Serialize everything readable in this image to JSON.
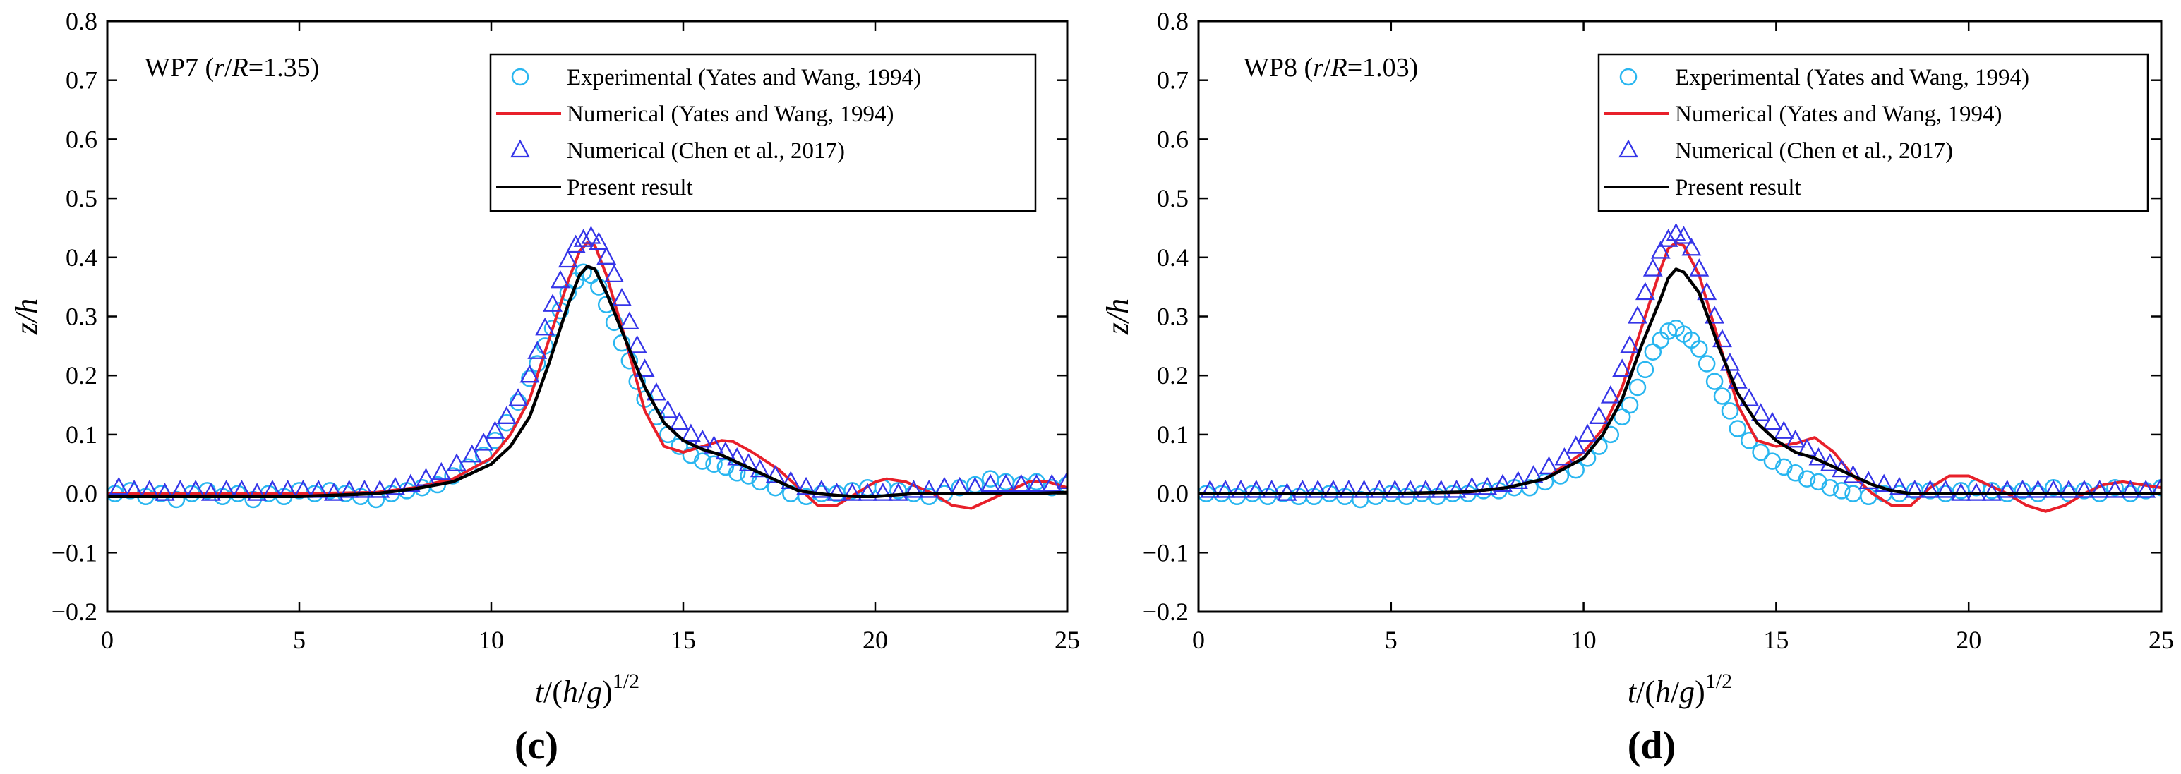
{
  "chart_data": [
    {
      "type": "line",
      "panel": "c",
      "annotation": {
        "prefix": "WP7 (",
        "var1": "r",
        "sep": "/",
        "var2": "R",
        "suffix": "=1.35)"
      },
      "xlabel": "t/(h/g)^1/2",
      "ylabel": "z/h",
      "xlim": [
        0,
        25
      ],
      "ylim": [
        -0.2,
        0.8
      ],
      "xticks": [
        0,
        5,
        10,
        15,
        20,
        25
      ],
      "yticks": [
        -0.2,
        -0.1,
        0.0,
        0.1,
        0.2,
        0.3,
        0.4,
        0.5,
        0.6,
        0.7,
        0.8
      ],
      "legend": [
        "Experimental (Yates and Wang, 1994)",
        "Numerical (Yates and Wang, 1994)",
        "Numerical (Chen et al., 2017)",
        "Present result"
      ],
      "series": [
        {
          "name": "Experimental (Yates and Wang, 1994)",
          "style": "circle",
          "color": "#29b6f0",
          "x": [
            0.2,
            0.6,
            1.0,
            1.4,
            1.8,
            2.2,
            2.6,
            3.0,
            3.4,
            3.8,
            4.2,
            4.6,
            5.0,
            5.4,
            5.8,
            6.2,
            6.6,
            7.0,
            7.4,
            7.8,
            8.2,
            8.6,
            9.0,
            9.4,
            9.8,
            10.1,
            10.4,
            10.7,
            11.0,
            11.2,
            11.4,
            11.6,
            11.8,
            12.0,
            12.2,
            12.4,
            12.6,
            12.8,
            13.0,
            13.2,
            13.4,
            13.6,
            13.8,
            14.0,
            14.3,
            14.6,
            14.9,
            15.2,
            15.5,
            15.8,
            16.1,
            16.4,
            16.7,
            17.0,
            17.4,
            17.8,
            18.2,
            18.6,
            19.0,
            19.4,
            19.8,
            20.2,
            20.6,
            21.0,
            21.4,
            21.8,
            22.2,
            22.6,
            23.0,
            23.4,
            23.8,
            24.2,
            24.6,
            25.0
          ],
          "y": [
            0.0,
            0.005,
            -0.005,
            0.0,
            -0.01,
            0.0,
            0.005,
            -0.005,
            0.0,
            -0.01,
            0.0,
            -0.005,
            0.005,
            0.0,
            0.005,
            0.0,
            -0.005,
            -0.01,
            0.0,
            0.005,
            0.01,
            0.015,
            0.03,
            0.045,
            0.065,
            0.09,
            0.12,
            0.155,
            0.195,
            0.22,
            0.25,
            0.28,
            0.31,
            0.34,
            0.36,
            0.375,
            0.37,
            0.35,
            0.32,
            0.29,
            0.255,
            0.225,
            0.19,
            0.16,
            0.13,
            0.1,
            0.08,
            0.065,
            0.055,
            0.05,
            0.045,
            0.035,
            0.03,
            0.02,
            0.01,
            0.0,
            -0.005,
            0.0,
            0.0,
            0.005,
            0.01,
            0.01,
            0.005,
            0.0,
            -0.005,
            0.0,
            0.01,
            0.015,
            0.025,
            0.02,
            0.015,
            0.02,
            0.01,
            0.015
          ]
        },
        {
          "name": "Numerical (Yates and Wang, 1994)",
          "style": "line",
          "color": "#e8202a",
          "x": [
            0,
            5,
            7,
            8,
            9,
            10,
            10.5,
            11,
            11.5,
            12,
            12.3,
            12.5,
            12.7,
            13,
            13.5,
            14,
            14.5,
            15,
            15.5,
            16,
            16.3,
            16.8,
            17.5,
            18,
            18.5,
            19,
            19.5,
            20,
            20.3,
            20.8,
            21.5,
            22,
            22.5,
            23,
            23.5,
            24,
            24.5,
            25
          ],
          "y": [
            0,
            0,
            0.002,
            0.01,
            0.025,
            0.06,
            0.1,
            0.16,
            0.26,
            0.36,
            0.41,
            0.425,
            0.42,
            0.37,
            0.26,
            0.14,
            0.08,
            0.07,
            0.08,
            0.09,
            0.088,
            0.07,
            0.04,
            0.01,
            -0.02,
            -0.02,
            0.0,
            0.02,
            0.025,
            0.02,
            0.0,
            -0.02,
            -0.025,
            -0.01,
            0.005,
            0.02,
            0.02,
            0.01
          ]
        },
        {
          "name": "Numerical (Chen et al., 2017)",
          "style": "triangle",
          "color": "#3535e8",
          "x": [
            0.3,
            0.7,
            1.1,
            1.5,
            1.9,
            2.3,
            2.7,
            3.1,
            3.5,
            3.9,
            4.3,
            4.7,
            5.1,
            5.5,
            5.9,
            6.3,
            6.7,
            7.1,
            7.5,
            7.9,
            8.3,
            8.7,
            9.1,
            9.5,
            9.8,
            10.1,
            10.4,
            10.7,
            11.0,
            11.2,
            11.4,
            11.6,
            11.8,
            12.0,
            12.2,
            12.4,
            12.6,
            12.8,
            13.0,
            13.2,
            13.4,
            13.6,
            13.8,
            14.0,
            14.3,
            14.6,
            14.9,
            15.2,
            15.5,
            15.8,
            16.1,
            16.4,
            16.7,
            17.0,
            17.4,
            17.8,
            18.2,
            18.6,
            19.0,
            19.4,
            19.8,
            20.2,
            20.6,
            21.0,
            21.4,
            21.8,
            22.2,
            22.6,
            23.0,
            23.4,
            23.8,
            24.2,
            24.6,
            25.0
          ],
          "y": [
            0.01,
            0.005,
            0.005,
            0.0,
            0.005,
            0.005,
            0.0,
            0.005,
            0.005,
            0.0,
            0.005,
            0.005,
            0.005,
            0.005,
            0.0,
            0.005,
            0.005,
            0.005,
            0.01,
            0.015,
            0.025,
            0.035,
            0.05,
            0.065,
            0.085,
            0.105,
            0.13,
            0.16,
            0.2,
            0.24,
            0.28,
            0.32,
            0.36,
            0.395,
            0.42,
            0.43,
            0.435,
            0.425,
            0.4,
            0.37,
            0.33,
            0.29,
            0.25,
            0.21,
            0.17,
            0.14,
            0.12,
            0.1,
            0.09,
            0.08,
            0.07,
            0.06,
            0.05,
            0.04,
            0.03,
            0.02,
            0.01,
            0.005,
            0.0,
            0.0,
            0.0,
            0.0,
            0.0,
            0.005,
            0.005,
            0.01,
            0.01,
            0.01,
            0.015,
            0.015,
            0.015,
            0.015,
            0.015,
            0.02
          ]
        },
        {
          "name": "Present result",
          "style": "line",
          "color": "#000000",
          "x": [
            0,
            5,
            7,
            8,
            9,
            10,
            10.5,
            11,
            11.5,
            12,
            12.3,
            12.5,
            12.7,
            13,
            13.5,
            14,
            14.5,
            15,
            15.5,
            16,
            16.5,
            17,
            17.5,
            18,
            18.5,
            19,
            19.5,
            20,
            21,
            22,
            23,
            24,
            25
          ],
          "y": [
            -0.005,
            -0.005,
            0.0,
            0.008,
            0.02,
            0.05,
            0.08,
            0.13,
            0.22,
            0.32,
            0.37,
            0.385,
            0.38,
            0.34,
            0.26,
            0.18,
            0.12,
            0.09,
            0.075,
            0.065,
            0.05,
            0.035,
            0.02,
            0.005,
            0.0,
            -0.003,
            -0.005,
            -0.005,
            0.0,
            0.0,
            0.0,
            0.0,
            0.002
          ]
        }
      ]
    },
    {
      "type": "line",
      "panel": "d",
      "annotation": {
        "prefix": "WP8 (",
        "var1": "r",
        "sep": "/",
        "var2": "R",
        "suffix": "=1.03)"
      },
      "xlabel": "t/(h/g)^1/2",
      "ylabel": "z/h",
      "xlim": [
        0,
        25
      ],
      "ylim": [
        -0.2,
        0.8
      ],
      "xticks": [
        0,
        5,
        10,
        15,
        20,
        25
      ],
      "yticks": [
        -0.2,
        -0.1,
        0.0,
        0.1,
        0.2,
        0.3,
        0.4,
        0.5,
        0.6,
        0.7,
        0.8
      ],
      "legend": [
        "Experimental (Yates and Wang, 1994)",
        "Numerical (Yates and Wang, 1994)",
        "Numerical (Chen et al., 2017)",
        "Present result"
      ],
      "series": [
        {
          "name": "Experimental (Yates and Wang, 1994)",
          "style": "circle",
          "color": "#29b6f0",
          "x": [
            0.2,
            0.6,
            1.0,
            1.4,
            1.8,
            2.2,
            2.6,
            3.0,
            3.4,
            3.8,
            4.2,
            4.6,
            5.0,
            5.4,
            5.8,
            6.2,
            6.6,
            7.0,
            7.4,
            7.8,
            8.2,
            8.6,
            9.0,
            9.4,
            9.8,
            10.1,
            10.4,
            10.7,
            11.0,
            11.2,
            11.4,
            11.6,
            11.8,
            12.0,
            12.2,
            12.4,
            12.6,
            12.8,
            13.0,
            13.2,
            13.4,
            13.6,
            13.8,
            14.0,
            14.3,
            14.6,
            14.9,
            15.2,
            15.5,
            15.8,
            16.1,
            16.4,
            16.7,
            17.0,
            17.4,
            17.8,
            18.2,
            18.6,
            19.0,
            19.4,
            19.8,
            20.2,
            20.6,
            21.0,
            21.4,
            21.8,
            22.2,
            22.6,
            23.0,
            23.4,
            23.8,
            24.2,
            24.6,
            25.0
          ],
          "y": [
            0.0,
            0.0,
            -0.005,
            0.0,
            -0.005,
            0.0,
            -0.005,
            -0.005,
            0.0,
            -0.005,
            -0.01,
            -0.005,
            0.0,
            -0.005,
            0.0,
            -0.005,
            0.0,
            0.0,
            0.005,
            0.005,
            0.01,
            0.01,
            0.02,
            0.03,
            0.04,
            0.06,
            0.08,
            0.1,
            0.13,
            0.15,
            0.18,
            0.21,
            0.24,
            0.26,
            0.275,
            0.28,
            0.27,
            0.26,
            0.245,
            0.22,
            0.19,
            0.165,
            0.14,
            0.11,
            0.09,
            0.07,
            0.055,
            0.045,
            0.035,
            0.025,
            0.02,
            0.01,
            0.005,
            0.0,
            -0.005,
            0.0,
            0.0,
            0.005,
            0.005,
            0.0,
            0.005,
            0.01,
            0.005,
            0.0,
            0.005,
            0.0,
            0.01,
            0.0,
            0.005,
            0.0,
            0.01,
            0.0,
            0.005,
            0.01
          ]
        },
        {
          "name": "Numerical (Yates and Wang, 1994)",
          "style": "line",
          "color": "#e8202a",
          "x": [
            0,
            5,
            7,
            8,
            9,
            10,
            10.5,
            11,
            11.5,
            12,
            12.2,
            12.4,
            12.6,
            13,
            13.5,
            14,
            14.5,
            15,
            15.5,
            16,
            16.5,
            17,
            17.5,
            18,
            18.5,
            19,
            19.5,
            20,
            20.5,
            21,
            21.5,
            22,
            22.5,
            23,
            23.5,
            24,
            24.5,
            25
          ],
          "y": [
            0,
            0,
            0.002,
            0.01,
            0.025,
            0.07,
            0.11,
            0.18,
            0.28,
            0.38,
            0.415,
            0.425,
            0.42,
            0.37,
            0.26,
            0.15,
            0.09,
            0.08,
            0.085,
            0.095,
            0.07,
            0.03,
            0.0,
            -0.02,
            -0.02,
            0.01,
            0.03,
            0.03,
            0.015,
            0.0,
            -0.02,
            -0.03,
            -0.02,
            0.0,
            0.015,
            0.02,
            0.015,
            0.01
          ]
        },
        {
          "name": "Numerical (Chen et al., 2017)",
          "style": "triangle",
          "color": "#3535e8",
          "x": [
            0.3,
            0.7,
            1.1,
            1.5,
            1.9,
            2.3,
            2.7,
            3.1,
            3.5,
            3.9,
            4.3,
            4.7,
            5.1,
            5.5,
            5.9,
            6.3,
            6.7,
            7.1,
            7.5,
            7.9,
            8.3,
            8.7,
            9.1,
            9.5,
            9.8,
            10.1,
            10.4,
            10.7,
            11.0,
            11.2,
            11.4,
            11.6,
            11.8,
            12.0,
            12.2,
            12.4,
            12.6,
            12.8,
            13.0,
            13.2,
            13.4,
            13.6,
            13.8,
            14.0,
            14.3,
            14.6,
            14.9,
            15.2,
            15.5,
            15.8,
            16.1,
            16.4,
            16.7,
            17.0,
            17.4,
            17.8,
            18.2,
            18.6,
            19.0,
            19.4,
            19.8,
            20.2,
            20.6,
            21.0,
            21.4,
            21.8,
            22.2,
            22.6,
            23.0,
            23.4,
            23.8,
            24.2,
            24.6,
            25.0
          ],
          "y": [
            0.005,
            0.005,
            0.005,
            0.005,
            0.005,
            0.0,
            0.005,
            0.005,
            0.005,
            0.005,
            0.005,
            0.005,
            0.005,
            0.005,
            0.005,
            0.005,
            0.005,
            0.01,
            0.01,
            0.015,
            0.02,
            0.03,
            0.045,
            0.06,
            0.08,
            0.1,
            0.13,
            0.165,
            0.21,
            0.25,
            0.3,
            0.34,
            0.38,
            0.41,
            0.43,
            0.44,
            0.435,
            0.415,
            0.38,
            0.34,
            0.3,
            0.26,
            0.22,
            0.19,
            0.16,
            0.135,
            0.12,
            0.105,
            0.09,
            0.075,
            0.06,
            0.05,
            0.04,
            0.03,
            0.02,
            0.015,
            0.01,
            0.005,
            0.005,
            0.005,
            0.0,
            0.0,
            0.0,
            0.005,
            0.005,
            0.005,
            0.005,
            0.005,
            0.005,
            0.005,
            0.005,
            0.005,
            0.005,
            0.01
          ]
        },
        {
          "name": "Present result",
          "style": "line",
          "color": "#000000",
          "x": [
            0,
            5,
            7,
            8,
            9,
            10,
            10.5,
            11,
            11.5,
            12,
            12.2,
            12.4,
            12.6,
            13,
            13.5,
            14,
            14.5,
            15,
            15.5,
            16,
            16.5,
            17,
            17.5,
            18,
            18.5,
            19,
            19.5,
            20,
            21,
            22,
            23,
            24,
            25
          ],
          "y": [
            0.0,
            0.0,
            0.003,
            0.01,
            0.025,
            0.06,
            0.1,
            0.16,
            0.25,
            0.33,
            0.365,
            0.38,
            0.375,
            0.34,
            0.25,
            0.17,
            0.12,
            0.09,
            0.07,
            0.06,
            0.045,
            0.03,
            0.015,
            0.005,
            0.0,
            0.0,
            0.0,
            0.0,
            0.0,
            0.0,
            0.0,
            0.0,
            0.0
          ]
        }
      ]
    }
  ]
}
